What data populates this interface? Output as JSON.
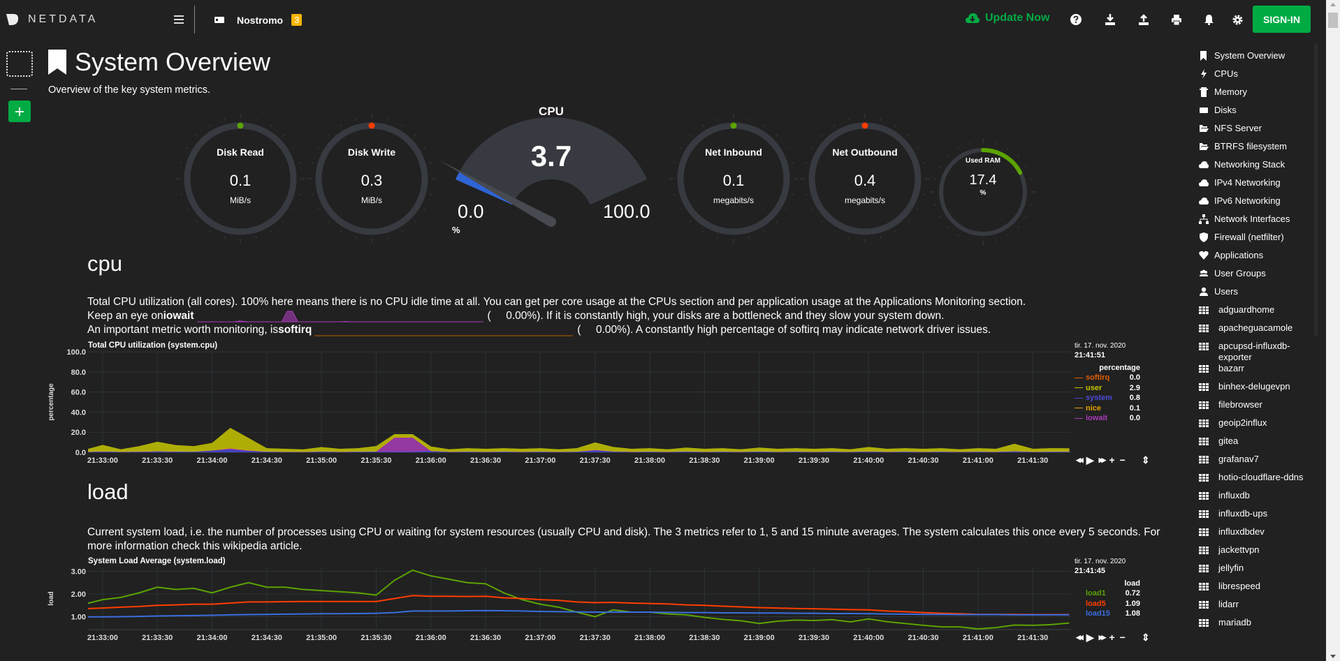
{
  "header": {
    "brand": "NETDATA",
    "menu_icon": "hamburger-icon",
    "server_name": "Nostromo",
    "alarm_count": "3",
    "update_label": "Update Now",
    "icons": [
      "help-icon",
      "download-icon",
      "upload-icon",
      "print-icon",
      "bell-icon",
      "gear-icon"
    ],
    "signin_label": "SIGN-IN"
  },
  "page": {
    "title": "System Overview",
    "subtitle": "Overview of the key system metrics."
  },
  "colors": {
    "accent": "#00ab44",
    "ok": "#5ba300",
    "warn": "#ff3d00",
    "track": "#373a40",
    "cpu_fill": "#2f64d6",
    "badge": "#f7b500"
  },
  "gauges": [
    {
      "title": "Disk Read",
      "value": "0.1",
      "unit": "MiB/s",
      "dot": "#5ba300"
    },
    {
      "title": "Disk Write",
      "value": "0.3",
      "unit": "MiB/s",
      "dot": "#ff3d00"
    },
    {
      "title": "Net Inbound",
      "value": "0.1",
      "unit": "megabits/s",
      "dot": "#5ba300"
    },
    {
      "title": "Net Outbound",
      "value": "0.4",
      "unit": "megabits/s",
      "dot": "#ff3d00"
    },
    {
      "title": "Used RAM",
      "value": "17.4",
      "unit": "%",
      "percent": 17.4
    }
  ],
  "cpu_gauge": {
    "title": "CPU",
    "value": "3.7",
    "min": "0.0",
    "max": "100.0",
    "unit": "%",
    "percent": 3.7
  },
  "sections": {
    "cpu": {
      "heading": "cpu",
      "desc1": "Total CPU utilization (all cores). 100% here means there is no CPU idle time at all. You can get per core usage at the CPUs section and per application usage at the Applications Monitoring section.",
      "desc2_pre": "Keep an eye on ",
      "desc2_bold": "iowait",
      "desc2_val": "0.00%",
      "desc2_post": "). If it is constantly high, your disks are a bottleneck and they slow your system down.",
      "desc3_pre": "An important metric worth monitoring, is ",
      "desc3_bold": "softirq",
      "desc3_val": "0.00%",
      "desc3_post": "). A constantly high percentage of softirq may indicate network driver issues."
    },
    "load": {
      "heading": "load",
      "desc1": "Current system load, i.e. the number of processes using CPU or waiting for system resources (usually CPU and disk). The 3 metrics refer to 1, 5 and 15 minute averages. The system calculates this once every 5 seconds. For more information check",
      "desc2": "this wikipedia article."
    }
  },
  "chart_data": [
    {
      "type": "area",
      "title": "Total CPU utilization (system.cpu)",
      "ylabel": "percentage",
      "ylim": [
        0,
        100
      ],
      "yticks": [
        "100.0",
        "80.0",
        "60.0",
        "40.0",
        "20.0",
        "0.0"
      ],
      "xticks": [
        "21:33:00",
        "21:33:30",
        "21:34:00",
        "21:34:30",
        "21:35:00",
        "21:35:30",
        "21:36:00",
        "21:36:30",
        "21:37:00",
        "21:37:30",
        "21:38:00",
        "21:38:30",
        "21:39:00",
        "21:39:30",
        "21:40:00",
        "21:40:30",
        "21:41:00",
        "21:41:30"
      ],
      "xlim": [
        "21:32:52",
        "21:41:51"
      ],
      "grid": true,
      "stacked": true,
      "legend": {
        "date": "tir. 17. nov. 2020",
        "time": "21:41:51",
        "unit": "percentage",
        "placement": "right"
      },
      "x": [
        "21:32:50",
        "21:33:00",
        "21:33:10",
        "21:33:20",
        "21:33:30",
        "21:33:40",
        "21:33:50",
        "21:34:00",
        "21:34:10",
        "21:34:20",
        "21:34:30",
        "21:34:40",
        "21:34:50",
        "21:35:00",
        "21:35:10",
        "21:35:20",
        "21:35:30",
        "21:35:40",
        "21:35:50",
        "21:36:00",
        "21:36:10",
        "21:36:20",
        "21:36:30",
        "21:36:40",
        "21:36:50",
        "21:37:00",
        "21:37:10",
        "21:37:20",
        "21:37:30",
        "21:37:40",
        "21:37:50",
        "21:38:00",
        "21:38:10",
        "21:38:20",
        "21:38:30",
        "21:38:40",
        "21:38:50",
        "21:39:00",
        "21:39:10",
        "21:39:20",
        "21:39:30",
        "21:39:40",
        "21:39:50",
        "21:40:00",
        "21:40:10",
        "21:40:20",
        "21:40:30",
        "21:40:40",
        "21:40:50",
        "21:41:00",
        "21:41:10",
        "21:41:20",
        "21:41:30",
        "21:41:40",
        "21:41:50"
      ],
      "series": [
        {
          "name": "softirq",
          "color": "#e05d00",
          "current": "0.0",
          "values": [
            0,
            0,
            0,
            0,
            0,
            0,
            0,
            0,
            0,
            0,
            0,
            0,
            0,
            0,
            0,
            0,
            0,
            0,
            0,
            0,
            0,
            0,
            0,
            0,
            0,
            0,
            0,
            0,
            0,
            0,
            0,
            0,
            0,
            0,
            0,
            0,
            0,
            0,
            0,
            0,
            0,
            0,
            0,
            0,
            0,
            0,
            0,
            0,
            0,
            0,
            0,
            0,
            0,
            0,
            0
          ]
        },
        {
          "name": "user",
          "color": "#c5c500",
          "current": "2.9",
          "values": [
            1.5,
            6,
            2,
            5,
            9,
            6,
            5,
            7,
            20,
            12,
            3,
            2.5,
            2,
            4,
            2.5,
            3,
            5,
            3,
            3,
            4,
            2,
            3,
            2.5,
            3,
            2.5,
            3,
            2,
            3,
            7,
            4,
            2.5,
            3,
            2,
            3.5,
            2.5,
            3,
            2,
            3.5,
            2.5,
            3,
            2.5,
            3,
            2,
            4,
            2.5,
            3,
            2.5,
            3,
            2,
            3,
            2.5,
            7,
            2.5,
            3,
            2.9
          ]
        },
        {
          "name": "system",
          "color": "#4a4ad6",
          "current": "0.8",
          "values": [
            0.6,
            1,
            0.7,
            0.8,
            1.2,
            0.9,
            0.8,
            2,
            3,
            1.5,
            0.8,
            0.7,
            0.6,
            0.9,
            0.7,
            0.8,
            0.9,
            0.8,
            0.8,
            1.5,
            0.7,
            0.8,
            0.7,
            0.8,
            0.7,
            0.8,
            0.7,
            0.8,
            2,
            1,
            0.7,
            0.8,
            0.7,
            0.9,
            0.7,
            0.8,
            0.7,
            0.9,
            0.7,
            0.8,
            0.7,
            0.8,
            0.7,
            1,
            0.7,
            0.8,
            0.7,
            0.8,
            0.7,
            0.8,
            0.7,
            1.2,
            0.7,
            0.8,
            0.8
          ]
        },
        {
          "name": "nice",
          "color": "#e5a000",
          "current": "0.1",
          "values": [
            0.1,
            0.1,
            0.1,
            0.1,
            0.1,
            0.1,
            0.1,
            0.1,
            0.1,
            0.1,
            0.1,
            0.1,
            0.1,
            0.1,
            0.1,
            0.1,
            0.1,
            0.1,
            0.1,
            0.1,
            0.1,
            0.1,
            0.1,
            0.1,
            0.1,
            0.1,
            0.1,
            0.1,
            0.1,
            0.1,
            0.1,
            0.1,
            0.1,
            0.1,
            0.1,
            0.1,
            0.1,
            0.1,
            0.1,
            0.1,
            0.1,
            0.1,
            0.1,
            0.1,
            0.1,
            0.1,
            0.1,
            0.1,
            0.1,
            0.1,
            0.1,
            0.1,
            0.1,
            0.1,
            0.1
          ]
        },
        {
          "name": "iowait",
          "color": "#a83cb8",
          "current": "0.0",
          "values": [
            0,
            0,
            0,
            0,
            0,
            0,
            0,
            0,
            1,
            0.5,
            0,
            0,
            0,
            0,
            0,
            0,
            0,
            14,
            14,
            0,
            0,
            0,
            0,
            0,
            0,
            0,
            0,
            0,
            0.5,
            0,
            0,
            0,
            0,
            0,
            0,
            0,
            0,
            0,
            0,
            0,
            0,
            0,
            0,
            0,
            0,
            0,
            0,
            0,
            0,
            0,
            0,
            0,
            0,
            0,
            0
          ]
        }
      ]
    },
    {
      "type": "line",
      "title": "System Load Average (system.load)",
      "ylabel": "load",
      "ylim": [
        0.43,
        3.17
      ],
      "yticks": [
        "3.00",
        "2.00",
        "1.00"
      ],
      "xticks": [
        "21:33:00",
        "21:33:30",
        "21:34:00",
        "21:34:30",
        "21:35:00",
        "21:35:30",
        "21:36:00",
        "21:36:30",
        "21:37:00",
        "21:37:30",
        "21:38:00",
        "21:38:30",
        "21:39:00",
        "21:39:30",
        "21:40:00",
        "21:40:30",
        "21:41:00",
        "21:41:30"
      ],
      "xlim": [
        "21:32:52",
        "21:41:51"
      ],
      "grid": true,
      "legend": {
        "date": "tir. 17. nov. 2020",
        "time": "21:41:45",
        "unit": "load",
        "placement": "right"
      },
      "x": [
        "21:32:50",
        "21:33:00",
        "21:33:10",
        "21:33:20",
        "21:33:30",
        "21:33:40",
        "21:33:50",
        "21:34:00",
        "21:34:10",
        "21:34:20",
        "21:34:30",
        "21:34:40",
        "21:34:50",
        "21:35:00",
        "21:35:10",
        "21:35:20",
        "21:35:30",
        "21:35:40",
        "21:35:50",
        "21:36:00",
        "21:36:10",
        "21:36:20",
        "21:36:30",
        "21:36:40",
        "21:36:50",
        "21:37:00",
        "21:37:10",
        "21:37:20",
        "21:37:30",
        "21:37:40",
        "21:37:50",
        "21:38:00",
        "21:38:10",
        "21:38:20",
        "21:38:30",
        "21:38:40",
        "21:38:50",
        "21:39:00",
        "21:39:10",
        "21:39:20",
        "21:39:30",
        "21:39:40",
        "21:39:50",
        "21:40:00",
        "21:40:10",
        "21:40:20",
        "21:40:30",
        "21:40:40",
        "21:40:50",
        "21:41:00",
        "21:41:10",
        "21:41:20",
        "21:41:30",
        "21:41:40",
        "21:41:50"
      ],
      "series": [
        {
          "name": "load1",
          "color": "#5ba300",
          "current": "0.72",
          "values": [
            1.55,
            1.75,
            1.85,
            2.05,
            2.3,
            2.2,
            2.25,
            2.05,
            2.3,
            2.5,
            2.3,
            2.3,
            2.2,
            2.15,
            2.1,
            2.05,
            1.95,
            2.6,
            3.05,
            2.8,
            2.65,
            2.5,
            2.45,
            2.05,
            1.75,
            1.55,
            1.42,
            1.2,
            1.0,
            1.3,
            1.2,
            1.2,
            1.12,
            1.08,
            0.97,
            0.88,
            0.82,
            0.7,
            0.8,
            0.85,
            0.83,
            0.87,
            0.77,
            0.9,
            0.78,
            0.7,
            0.62,
            0.55,
            0.55,
            0.46,
            0.52,
            0.63,
            0.62,
            0.65,
            0.72
          ]
        },
        {
          "name": "load5",
          "color": "#ff3d00",
          "current": "1.09",
          "values": [
            1.35,
            1.38,
            1.42,
            1.45,
            1.5,
            1.52,
            1.55,
            1.55,
            1.6,
            1.65,
            1.65,
            1.66,
            1.67,
            1.67,
            1.67,
            1.67,
            1.67,
            1.8,
            1.93,
            1.9,
            1.9,
            1.89,
            1.9,
            1.83,
            1.8,
            1.75,
            1.72,
            1.65,
            1.62,
            1.63,
            1.6,
            1.58,
            1.56,
            1.52,
            1.5,
            1.46,
            1.43,
            1.4,
            1.38,
            1.36,
            1.35,
            1.33,
            1.31,
            1.3,
            1.25,
            1.22,
            1.18,
            1.15,
            1.13,
            1.1,
            1.1,
            1.1,
            1.09,
            1.09,
            1.09
          ]
        },
        {
          "name": "load15",
          "color": "#3a6ee0",
          "current": "1.08",
          "values": [
            0.99,
            0.99,
            1.0,
            1.01,
            1.03,
            1.04,
            1.05,
            1.06,
            1.08,
            1.09,
            1.1,
            1.11,
            1.12,
            1.13,
            1.13,
            1.14,
            1.15,
            1.18,
            1.25,
            1.25,
            1.25,
            1.26,
            1.27,
            1.26,
            1.25,
            1.23,
            1.22,
            1.21,
            1.2,
            1.2,
            1.2,
            1.2,
            1.19,
            1.18,
            1.18,
            1.17,
            1.17,
            1.16,
            1.16,
            1.15,
            1.15,
            1.14,
            1.14,
            1.13,
            1.12,
            1.11,
            1.1,
            1.1,
            1.09,
            1.09,
            1.09,
            1.08,
            1.08,
            1.08,
            1.08
          ]
        }
      ]
    }
  ],
  "chart_controls": [
    "rewind-icon",
    "play-icon",
    "forward-icon",
    "zoom-in-icon",
    "zoom-out-icon",
    "resize-icon"
  ],
  "left_rail": {
    "add_icon": "plus-icon",
    "space_icon": "space-placeholder-icon"
  },
  "nav": [
    {
      "label": "System Overview",
      "icon": "bookmark-icon"
    },
    {
      "label": "CPUs",
      "icon": "bolt-icon"
    },
    {
      "label": "Memory",
      "icon": "memory-icon"
    },
    {
      "label": "Disks",
      "icon": "disk-icon"
    },
    {
      "label": "NFS Server",
      "icon": "folder-open-icon"
    },
    {
      "label": "BTRFS filesystem",
      "icon": "folder-open-icon"
    },
    {
      "label": "Networking Stack",
      "icon": "cloud-icon"
    },
    {
      "label": "IPv4 Networking",
      "icon": "cloud-icon"
    },
    {
      "label": "IPv6 Networking",
      "icon": "cloud-icon"
    },
    {
      "label": "Network Interfaces",
      "icon": "network-icon"
    },
    {
      "label": "Firewall (netfilter)",
      "icon": "shield-icon"
    },
    {
      "label": "Applications",
      "icon": "heartbeat-icon"
    },
    {
      "label": "User Groups",
      "icon": "users-icon"
    },
    {
      "label": "Users",
      "icon": "user-icon"
    },
    {
      "label": "adguardhome",
      "icon": "grid-icon"
    },
    {
      "label": "apacheguacamole",
      "icon": "grid-icon"
    },
    {
      "label": "apcupsd-influxdb-exporter",
      "icon": "grid-icon"
    },
    {
      "label": "bazarr",
      "icon": "grid-icon"
    },
    {
      "label": "binhex-delugevpn",
      "icon": "grid-icon"
    },
    {
      "label": "filebrowser",
      "icon": "grid-icon"
    },
    {
      "label": "geoip2influx",
      "icon": "grid-icon"
    },
    {
      "label": "gitea",
      "icon": "grid-icon"
    },
    {
      "label": "grafanav7",
      "icon": "grid-icon"
    },
    {
      "label": "hotio-cloudflare-ddns",
      "icon": "grid-icon"
    },
    {
      "label": "influxdb",
      "icon": "grid-icon"
    },
    {
      "label": "influxdb-ups",
      "icon": "grid-icon"
    },
    {
      "label": "influxdbdev",
      "icon": "grid-icon"
    },
    {
      "label": "jackettvpn",
      "icon": "grid-icon"
    },
    {
      "label": "jellyfin",
      "icon": "grid-icon"
    },
    {
      "label": "librespeed",
      "icon": "grid-icon"
    },
    {
      "label": "lidarr",
      "icon": "grid-icon"
    },
    {
      "label": "mariadb",
      "icon": "grid-icon"
    }
  ]
}
